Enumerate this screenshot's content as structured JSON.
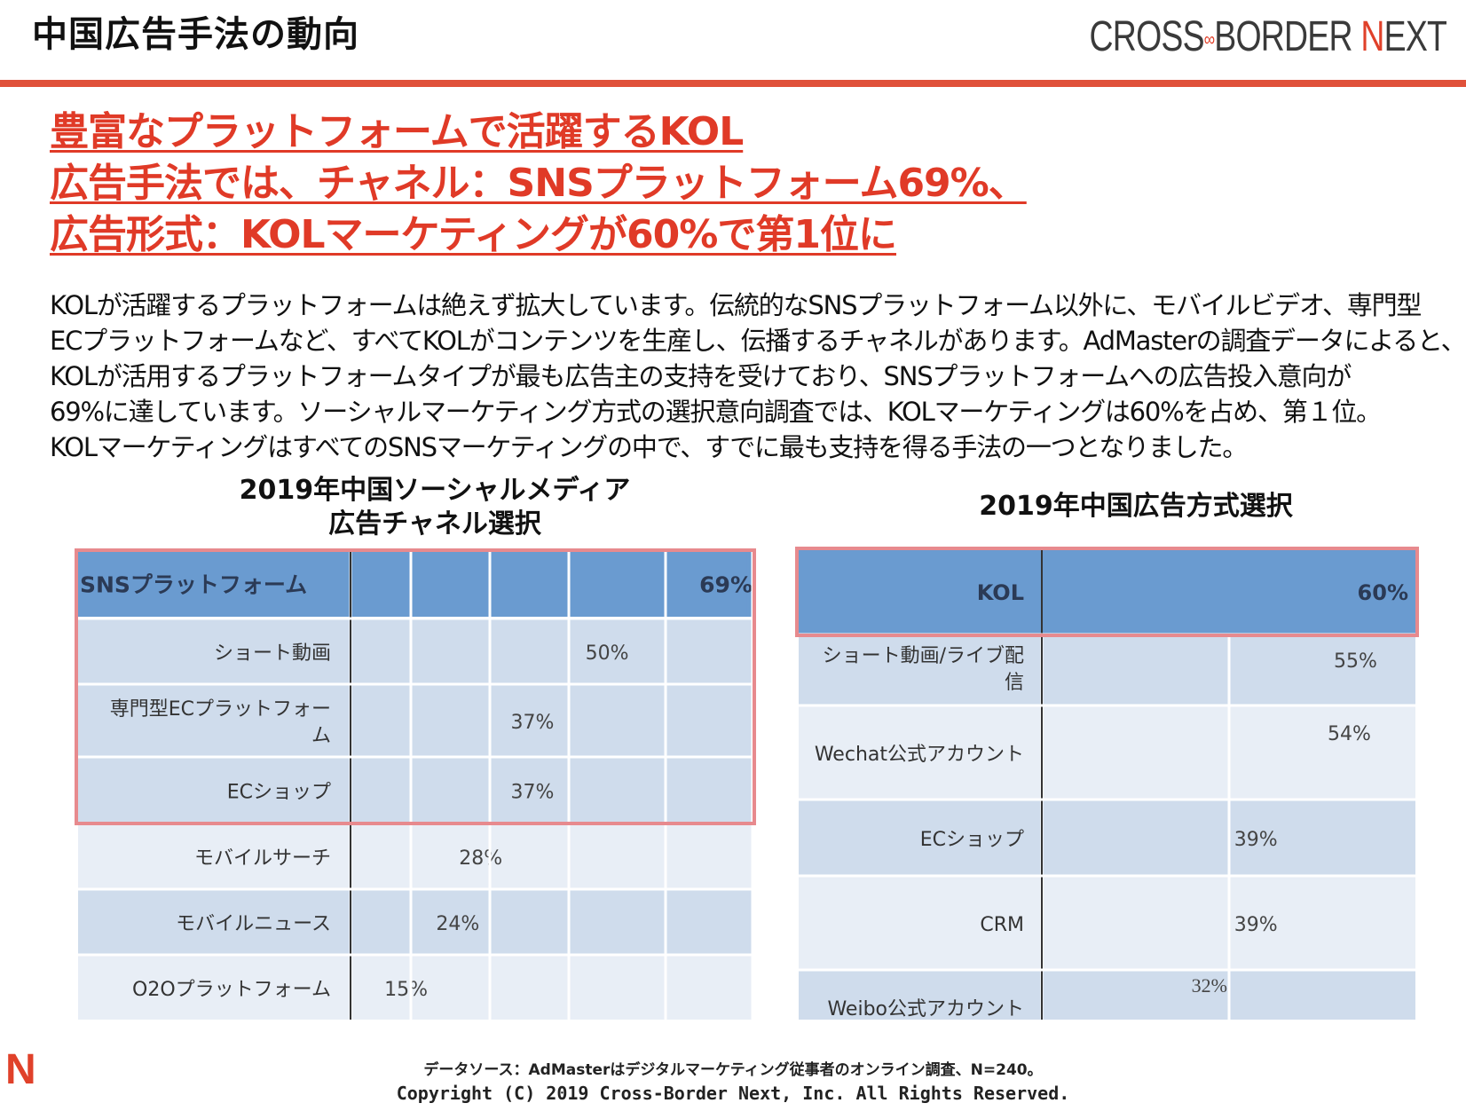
{
  "header": {
    "title": "中国広告手法の動向",
    "logo_text_1": "CROSS",
    "logo_text_2": "BORDER",
    "logo_text_3": "N",
    "logo_text_4": "EXT",
    "logo_infinity": "∞"
  },
  "headline": {
    "line1": "豊富なプラットフォームで活躍するKOL",
    "line2": "広告手法では、チャネル：SNSプラットフォーム69%、",
    "line3": "広告形式：KOLマーケティングが60%で第1位に"
  },
  "body": {
    "line1": "KOLが活躍するプラットフォームは絶えず拡大しています。伝統的なSNSプラットフォーム以外に、モバイルビデオ、専門型",
    "line2": "ECプラットフォームなど、すべてKOLがコンテンツを生産し、伝播するチャネルがあります。AdMasterの調査データによると、",
    "line3": "KOLが活用するプラットフォームタイプが最も広告主の支持を受けており、SNSプラットフォームへの広告投入意向が",
    "line4": "69%に達しています。ソーシャルマーケティング方式の選択意向調査では、KOLマーケティングは60%を占め、第１位。",
    "line5": "KOLマーケティングはすべてのSNSマーケティングの中で、すでに最も支持を得る手法の一つとなりました。"
  },
  "colors": {
    "accent_red": "#e0412a",
    "bar_blue": "#6a9bd0",
    "row_light": "#cfdcec",
    "row_lighter": "#e8eef6",
    "highlight_border": "#e78a8e"
  },
  "chart_data": [
    {
      "type": "bar",
      "title_line1": "2019年中国ソーシャルメディア",
      "title_line2": "広告チャネル選択",
      "categories": [
        "SNSプラットフォーム",
        "ショート動画",
        "専門型ECプラットフォーム",
        "ECショップ",
        "モバイルサーチ",
        "モバイルニュース",
        "O2Oプラットフォーム"
      ],
      "values": [
        69,
        50,
        37,
        37,
        28,
        24,
        15
      ],
      "labels": [
        "69%",
        "50%",
        "37%",
        "37%",
        "28%",
        "24%",
        "15%"
      ],
      "unit": "%",
      "orientation": "horizontal",
      "highlighted": [
        "SNSプラットフォーム",
        "ショート動画",
        "専門型ECプラットフォーム",
        "ECショップ"
      ]
    },
    {
      "type": "bar",
      "title": "2019年中国広告方式選択",
      "categories": [
        "KOL",
        "ショート動画/ライブ配信",
        "Wechat公式アカウント",
        "ECショップ",
        "CRM",
        "Weibo公式アカウント"
      ],
      "values": [
        60,
        55,
        54,
        39,
        39,
        32
      ],
      "labels": [
        "60%",
        "55%",
        "54%",
        "39%",
        "39%",
        "32%"
      ],
      "unit": "%",
      "orientation": "horizontal",
      "highlighted": [
        "KOL"
      ]
    }
  ],
  "footer": {
    "source": "データソース：AdMasterはデジタルマーケティング従事者のオンライン調査、N=240。",
    "copyright": "Copyright (C) 2019 Cross-Border Next, Inc. All Rights Reserved.",
    "icon_letter": "N"
  }
}
